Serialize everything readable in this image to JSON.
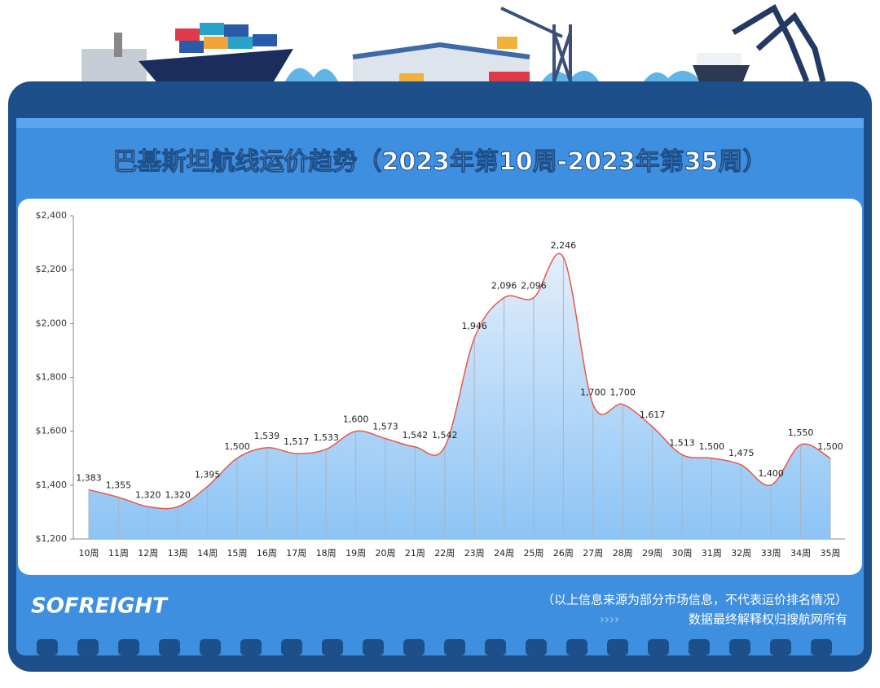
{
  "chart_data": {
    "type": "area",
    "title": "巴基斯坦航线运价趋势（2023年第10周-2023年第35周）",
    "categories": [
      "10周",
      "11周",
      "12周",
      "13周",
      "14周",
      "15周",
      "16周",
      "17周",
      "18周",
      "19周",
      "20周",
      "21周",
      "22周",
      "23周",
      "24周",
      "25周",
      "26周",
      "27周",
      "28周",
      "29周",
      "30周",
      "31周",
      "32周",
      "33周",
      "34周",
      "35周"
    ],
    "values": [
      1383,
      1355,
      1320,
      1320,
      1395,
      1500,
      1539,
      1517,
      1533,
      1600,
      1573,
      1542,
      1542,
      1946,
      2096,
      2096,
      2246,
      1700,
      1700,
      1617,
      1513,
      1500,
      1475,
      1400,
      1550,
      1500
    ],
    "value_labels": [
      "1,383",
      "1,355",
      "1,320",
      "1,320",
      "1,395",
      "1,500",
      "1,539",
      "1,517",
      "1,533",
      "1,600",
      "1,573",
      "1,542",
      "1,542",
      "1,946",
      "2,096",
      "2,096",
      "2,246",
      "1,700",
      "1,700",
      "1,617",
      "1,513",
      "1,500",
      "1,475",
      "1,400",
      "1,550",
      "1,500"
    ],
    "color": "#e8584a",
    "ylim": [
      1200,
      2400
    ],
    "yticks": [
      {
        "value": 1200,
        "label": "$1,200"
      },
      {
        "value": 1400,
        "label": "$1,400"
      },
      {
        "value": 1600,
        "label": "$1,600"
      },
      {
        "value": 1800,
        "label": "$1,800"
      },
      {
        "value": 2000,
        "label": "$2,000"
      },
      {
        "value": 2200,
        "label": "$2,200"
      },
      {
        "value": 2400,
        "label": "$2,400"
      }
    ],
    "brand": "SOFREIGHT",
    "note": "（以上信息来源为部分市场信息，不代表运价排名情况）",
    "copyright": "数据最终解释权归搜航网所有"
  }
}
